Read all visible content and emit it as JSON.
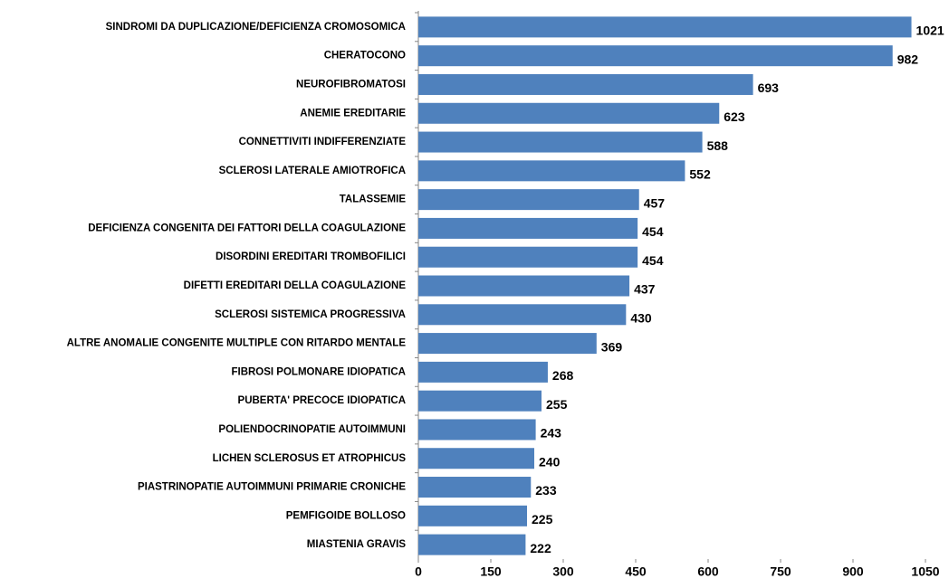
{
  "chart_data": {
    "type": "bar",
    "orientation": "horizontal",
    "categories": [
      "SINDROMI DA DUPLICAZIONE/DEFICIENZA CROMOSOMICA",
      "CHERATOCONO",
      "NEUROFIBROMATOSI",
      "ANEMIE EREDITARIE",
      "CONNETTIVITI INDIFFERENZIATE",
      "SCLEROSI LATERALE  AMIOTROFICA",
      "TALASSEMIE",
      "DEFICIENZA CONGENITA DEI FATTORI DELLA COAGULAZIONE",
      "DISORDINI EREDITARI  TROMBOFILICI",
      "DIFETTI EREDITARI DELLA COAGULAZIONE",
      "SCLEROSI SISTEMICA PROGRESSIVA",
      "ALTRE ANOMALIE CONGENITE MULTIPLE CON RITARDO MENTALE",
      "FIBROSI POLMONARE IDIOPATICA",
      "PUBERTA' PRECOCE IDIOPATICA",
      "POLIENDOCRINOPATIE AUTOIMMUNI",
      "LICHEN SCLEROSUS ET ATROPHICUS",
      "PIASTRINOPATIE AUTOIMMUNI PRIMARIE CRONICHE",
      "PEMFIGOIDE BOLLOSO",
      "MIASTENIA GRAVIS"
    ],
    "values": [
      1021,
      982,
      693,
      623,
      588,
      552,
      457,
      454,
      454,
      437,
      430,
      369,
      268,
      255,
      243,
      240,
      233,
      225,
      222
    ],
    "color": "#4f81bd",
    "xlim": [
      0,
      1050
    ],
    "xticks": [
      0,
      150,
      300,
      450,
      600,
      750,
      900,
      1050
    ]
  }
}
